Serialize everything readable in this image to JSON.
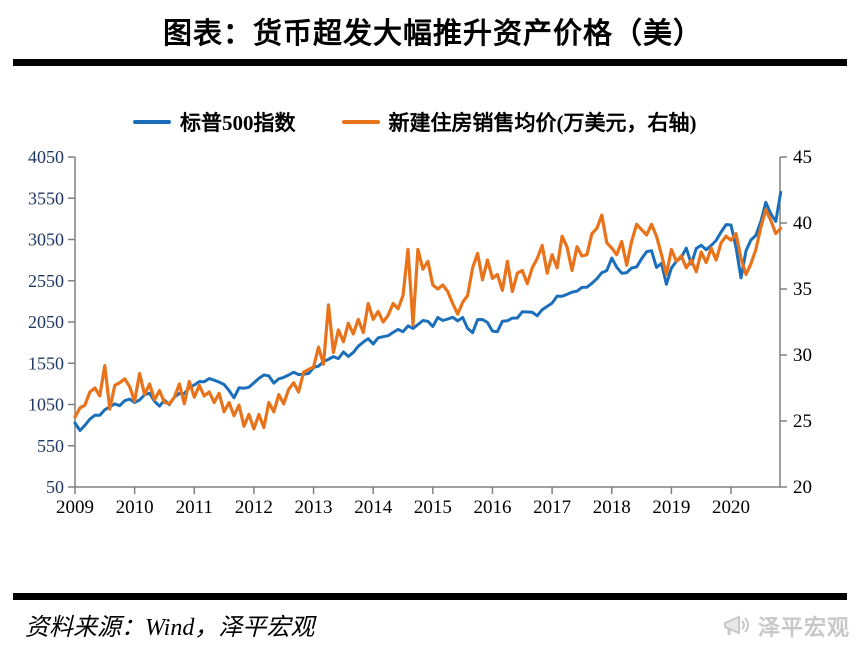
{
  "page": {
    "title": "图表：货币超发大幅推升资产价格（美）"
  },
  "legend": [
    {
      "label": "标普500指数",
      "color": "#1b6fba"
    },
    {
      "label": "新建住房销售均价(万美元，右轴)",
      "color": "#e8731a"
    }
  ],
  "footer": {
    "source": "资料来源：Wind，泽平宏观",
    "logo_text": "泽平宏观",
    "logo_icon": "megaphone-icon",
    "logo_color": "#c8c8c8"
  },
  "chart_data": {
    "type": "line",
    "title": "货币超发大幅推升资产价格（美）",
    "x_start_year": 2009,
    "x_tick_labels": [
      "2009",
      "2010",
      "2011",
      "2012",
      "2013",
      "2014",
      "2015",
      "2016",
      "2017",
      "2018",
      "2019",
      "2020"
    ],
    "grid": false,
    "legend_position": "top",
    "left_axis": {
      "min": 50,
      "max": 4050,
      "ticks": [
        50,
        550,
        1050,
        1550,
        2050,
        2550,
        3050,
        3550,
        4050
      ],
      "label_color": "#1f3864"
    },
    "right_axis": {
      "min": 20,
      "max": 45,
      "ticks": [
        20,
        25,
        30,
        35,
        40,
        45
      ],
      "label_color": "#000000"
    },
    "axis_color": "#808080",
    "series": [
      {
        "name": "标普500指数",
        "axis": "left",
        "color": "#1b6fba",
        "width": 3,
        "values": [
          826,
          735,
          798,
          873,
          919,
          919,
          987,
          1021,
          1057,
          1036,
          1096,
          1115,
          1074,
          1104,
          1169,
          1187,
          1089,
          1031,
          1102,
          1049,
          1141,
          1183,
          1181,
          1258,
          1286,
          1327,
          1326,
          1364,
          1345,
          1321,
          1292,
          1219,
          1131,
          1253,
          1247,
          1258,
          1312,
          1366,
          1408,
          1398,
          1310,
          1362,
          1379,
          1407,
          1441,
          1412,
          1416,
          1426,
          1498,
          1515,
          1569,
          1598,
          1631,
          1606,
          1686,
          1633,
          1682,
          1757,
          1806,
          1848,
          1783,
          1859,
          1872,
          1884,
          1924,
          1960,
          1931,
          2003,
          1972,
          2018,
          2068,
          2059,
          1995,
          2105,
          2068,
          2086,
          2107,
          2063,
          2104,
          1972,
          1920,
          2079,
          2080,
          2044,
          1940,
          1932,
          2060,
          2065,
          2097,
          2099,
          2174,
          2171,
          2168,
          2126,
          2199,
          2239,
          2279,
          2364,
          2363,
          2384,
          2412,
          2423,
          2470,
          2472,
          2519,
          2575,
          2648,
          2674,
          2824,
          2714,
          2641,
          2648,
          2705,
          2718,
          2816,
          2902,
          2914,
          2712,
          2760,
          2507,
          2704,
          2784,
          2834,
          2946,
          2752,
          2942,
          2980,
          2926,
          2977,
          3038,
          3141,
          3231,
          3226,
          2954,
          2585,
          2912,
          3044,
          3100,
          3271,
          3500,
          3363,
          3270,
          3622
        ]
      },
      {
        "name": "新建住房销售均价(万美元，右轴)",
        "axis": "right",
        "color": "#e8731a",
        "width": 3.2,
        "values": [
          25.3,
          26.0,
          26.2,
          27.2,
          27.5,
          26.9,
          29.2,
          25.9,
          27.7,
          27.9,
          28.2,
          27.6,
          26.5,
          28.6,
          27.0,
          27.8,
          26.6,
          27.3,
          26.4,
          26.3,
          26.8,
          27.8,
          26.3,
          28.0,
          26.8,
          27.7,
          26.9,
          27.2,
          26.4,
          27.1,
          25.7,
          26.4,
          25.4,
          26.2,
          24.6,
          25.5,
          24.4,
          25.5,
          24.5,
          26.4,
          25.7,
          27.0,
          26.3,
          27.4,
          27.9,
          27.2,
          28.7,
          28.9,
          29.1,
          30.6,
          29.3,
          33.8,
          30.2,
          31.9,
          31.0,
          32.4,
          31.6,
          32.7,
          31.7,
          33.9,
          32.7,
          33.3,
          32.5,
          33.0,
          33.9,
          33.5,
          34.5,
          38.0,
          32.3,
          38.0,
          36.5,
          37.1,
          35.3,
          35.0,
          35.3,
          34.8,
          33.9,
          33.1,
          34.0,
          34.5,
          36.6,
          37.7,
          35.7,
          37.2,
          35.8,
          36.1,
          34.9,
          37.1,
          34.8,
          36.2,
          36.4,
          35.4,
          36.6,
          37.3,
          38.3,
          36.2,
          37.6,
          36.6,
          39.0,
          38.2,
          36.4,
          38.2,
          37.5,
          37.6,
          39.2,
          39.6,
          40.6,
          38.5,
          38.1,
          37.6,
          38.6,
          36.8,
          38.6,
          39.9,
          39.5,
          39.1,
          39.9,
          39.0,
          37.6,
          36.1,
          38.0,
          37.1,
          37.5,
          36.6,
          37.2,
          36.3,
          37.8,
          37.0,
          38.1,
          37.2,
          38.5,
          39.0,
          38.7,
          39.2,
          37.3,
          36.1,
          36.9,
          38.0,
          39.7,
          41.0,
          40.2,
          39.2,
          39.6
        ]
      }
    ]
  }
}
